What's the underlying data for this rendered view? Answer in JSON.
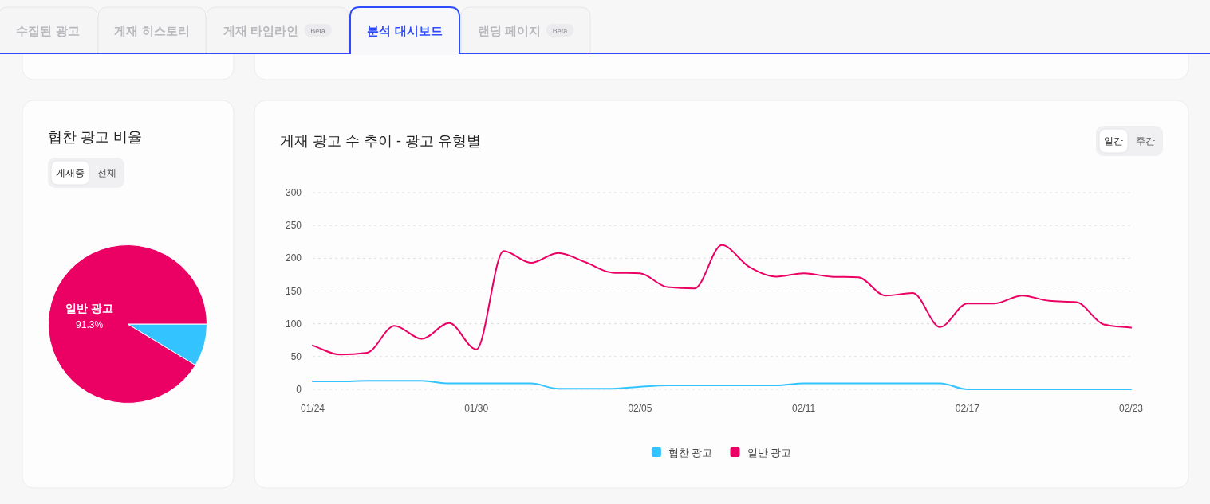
{
  "chart_data": [
    {
      "type": "other",
      "annotations": [
        "수집된 광고",
        "게재 히스토리",
        "게재 타임라인",
        "Beta",
        "분석 대시보드",
        "랜딩 페이지",
        "Beta"
      ]
    },
    {
      "type": "pie",
      "title": "협찬 광고 비율",
      "categories": [
        null,
        "일반 광고"
      ],
      "values": [
        8.7,
        91.3
      ],
      "colors": [
        "#33c3ff",
        "#eb0064"
      ],
      "value_labels": [
        null,
        "91.3%"
      ],
      "annotations": [
        "게재중",
        "전체"
      ]
    },
    {
      "type": "line",
      "title": "게재 광고 수 추이 - 광고 유형별",
      "categories": [
        "01/24",
        null,
        null,
        null,
        null,
        null,
        "01/30",
        null,
        null,
        null,
        null,
        null,
        "02/05",
        null,
        null,
        null,
        null,
        null,
        "02/11",
        null,
        null,
        null,
        null,
        null,
        "02/17",
        null,
        null,
        null,
        null,
        null,
        "02/23"
      ],
      "series": [
        {
          "name": "협찬 광고",
          "color": "#33c3ff",
          "values": [
            12,
            12,
            13,
            13,
            13,
            9,
            9,
            9,
            9,
            1,
            1,
            1,
            4,
            6,
            6,
            6,
            6,
            6,
            9,
            9,
            9,
            9,
            9,
            9,
            0,
            0,
            0,
            0,
            0,
            0,
            0
          ]
        },
        {
          "name": "일반 광고",
          "color": "#eb0064",
          "values": [
            67,
            53,
            56,
            97,
            77,
            101,
            61,
            211,
            193,
            208,
            194,
            178,
            177,
            156,
            154,
            220,
            187,
            172,
            177,
            172,
            171,
            143,
            147,
            95,
            131,
            131,
            143,
            135,
            133,
            99,
            94
          ]
        }
      ],
      "ylim": [
        0,
        300
      ],
      "yticks": [
        0,
        50,
        100,
        150,
        200,
        250,
        300
      ],
      "grid": "y",
      "legend": "bottom",
      "annotations": [
        "일간",
        "주간"
      ]
    }
  ]
}
